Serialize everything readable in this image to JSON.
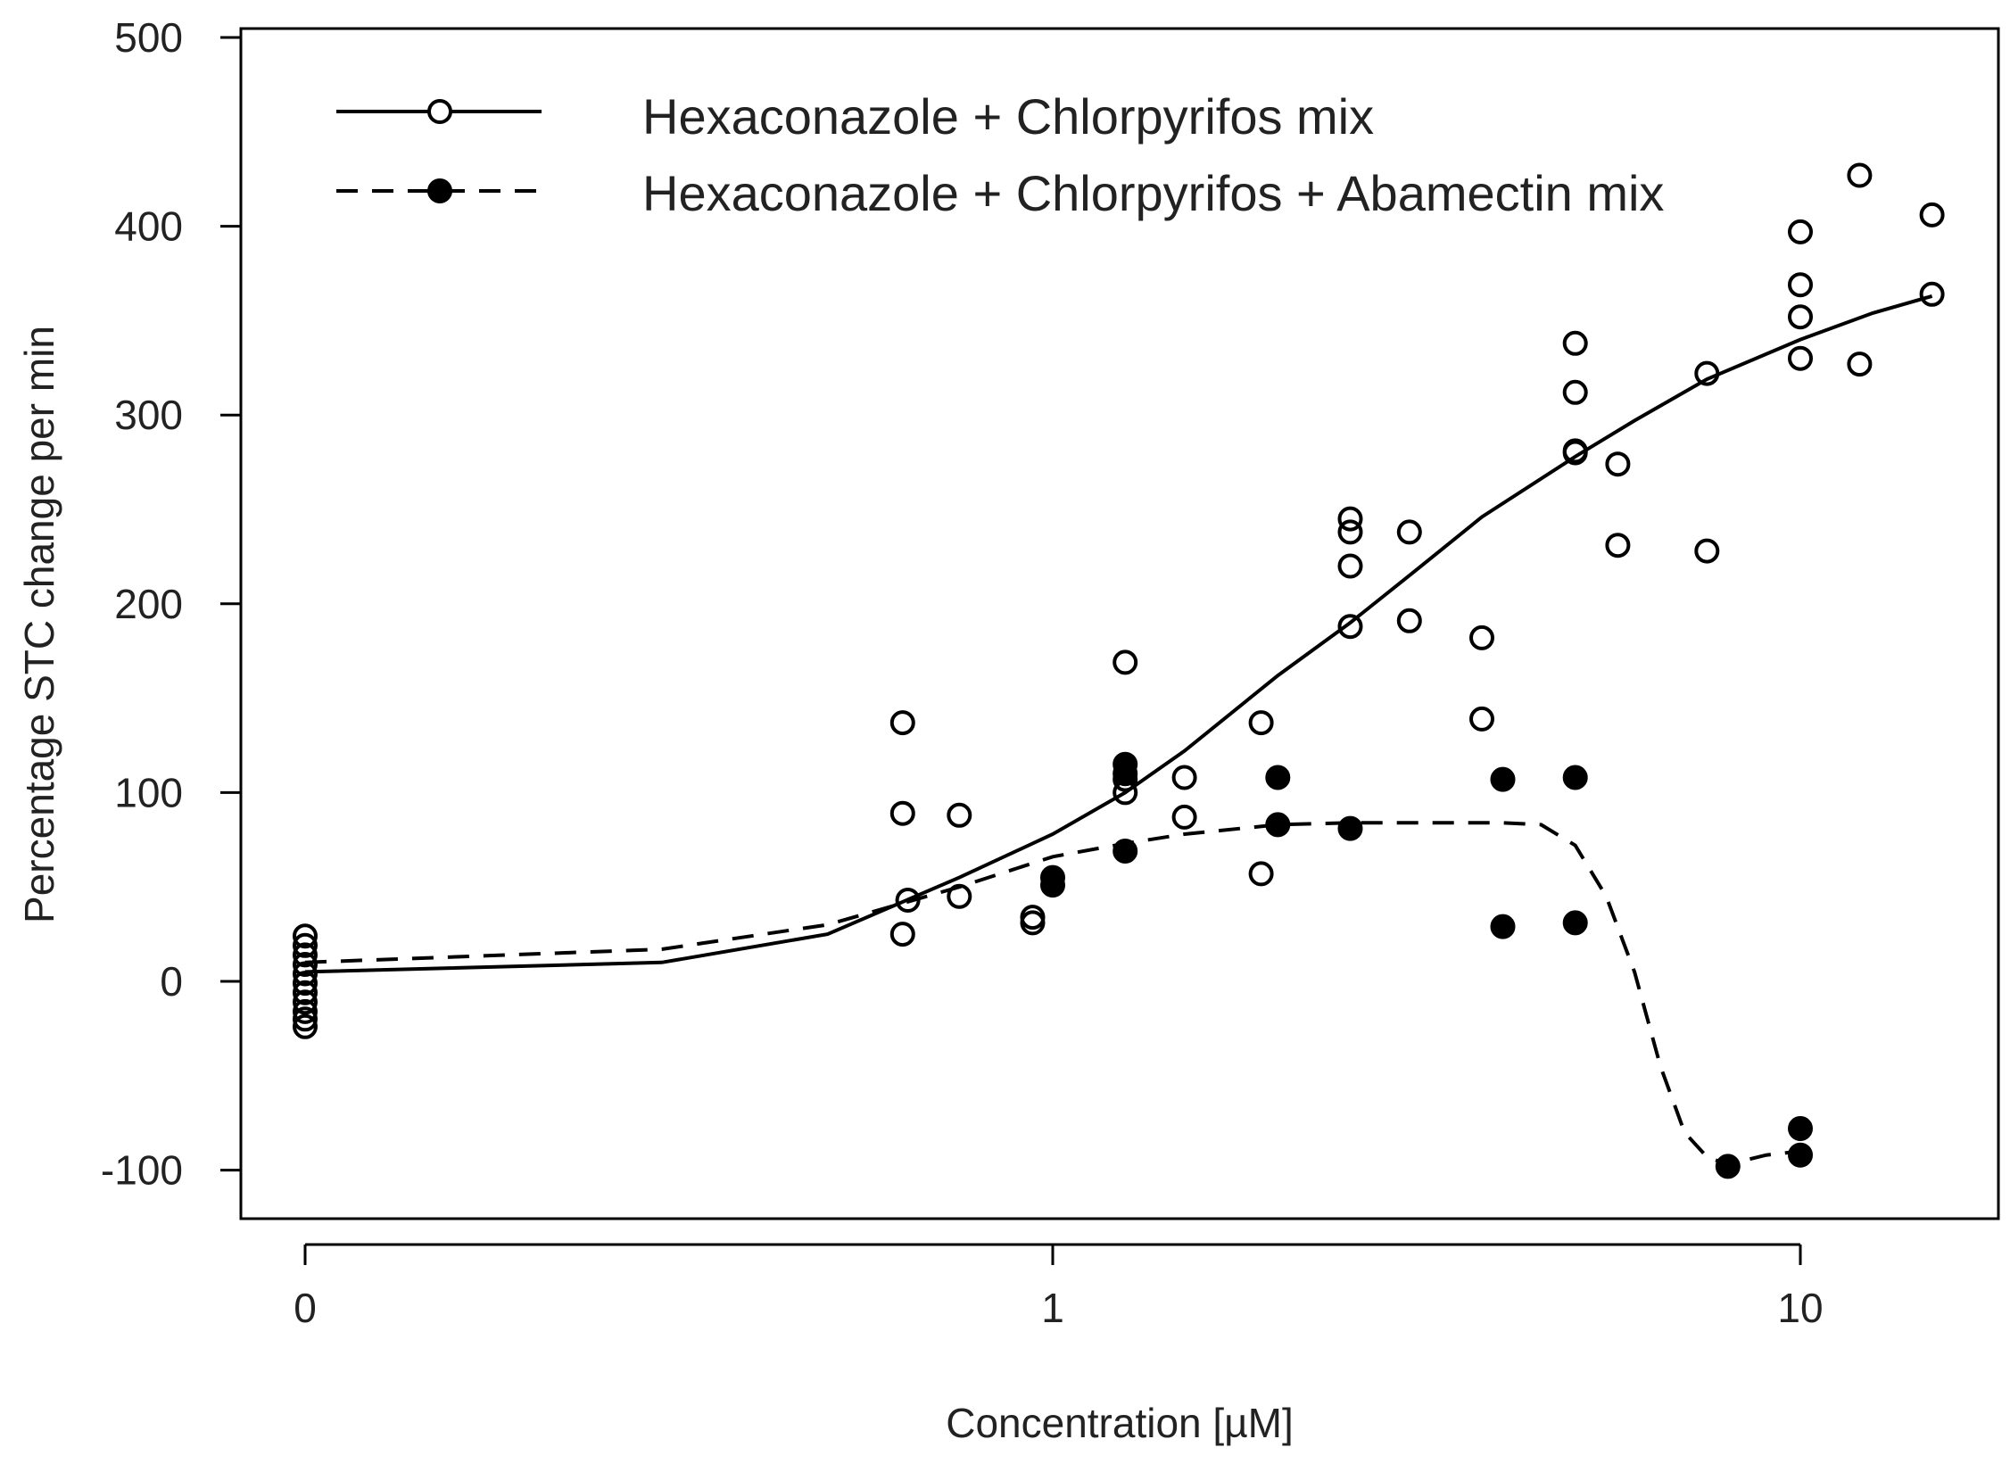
{
  "chart_data": {
    "type": "scatter",
    "title": "",
    "xlabel": "Concentration [µM]",
    "ylabel": "Percentage STC change per min",
    "xscale": "log10 with zero position",
    "ylim": [
      -125,
      500
    ],
    "x_ticks": [
      {
        "value": 0,
        "label": "0"
      },
      {
        "value": 1,
        "label": "1"
      },
      {
        "value": 10,
        "label": "10"
      }
    ],
    "y_ticks": [
      {
        "value": 500,
        "label": "500"
      },
      {
        "value": 400,
        "label": "400"
      },
      {
        "value": 300,
        "label": "300"
      },
      {
        "value": 200,
        "label": "200"
      },
      {
        "value": 100,
        "label": "100"
      },
      {
        "value": 0,
        "label": "0"
      },
      {
        "value": -100,
        "label": "-100"
      }
    ],
    "grid": false,
    "legend_position": "top-left",
    "series": [
      {
        "name": "Hexaconazole + Chlorpyrifos mix",
        "marker": "open-circle",
        "line": "solid",
        "points": [
          [
            0,
            24
          ],
          [
            0,
            19
          ],
          [
            0,
            14
          ],
          [
            0,
            9
          ],
          [
            0,
            4
          ],
          [
            0,
            -1
          ],
          [
            0,
            -6
          ],
          [
            0,
            -11
          ],
          [
            0,
            -16
          ],
          [
            0,
            -20
          ],
          [
            0,
            -24
          ],
          [
            0.63,
            137
          ],
          [
            0.63,
            89
          ],
          [
            0.64,
            43
          ],
          [
            0.63,
            25
          ],
          [
            0.75,
            88
          ],
          [
            0.75,
            45
          ],
          [
            0.94,
            34
          ],
          [
            0.94,
            31
          ],
          [
            1.25,
            169
          ],
          [
            1.25,
            107
          ],
          [
            1.25,
            100
          ],
          [
            1.5,
            108
          ],
          [
            1.5,
            87
          ],
          [
            1.9,
            137
          ],
          [
            1.9,
            57
          ],
          [
            2.5,
            245
          ],
          [
            2.5,
            238
          ],
          [
            2.5,
            220
          ],
          [
            2.5,
            188
          ],
          [
            3.0,
            238
          ],
          [
            3.0,
            191
          ],
          [
            3.75,
            182
          ],
          [
            3.75,
            139
          ],
          [
            5.0,
            338
          ],
          [
            5.0,
            312
          ],
          [
            5.0,
            281
          ],
          [
            5.0,
            280
          ],
          [
            5.7,
            274
          ],
          [
            5.7,
            231
          ],
          [
            7.5,
            322
          ],
          [
            7.5,
            228
          ],
          [
            10,
            397
          ],
          [
            10,
            369
          ],
          [
            10,
            352
          ],
          [
            10,
            330
          ],
          [
            12,
            427
          ],
          [
            12,
            327
          ],
          [
            15,
            406
          ],
          [
            15,
            364
          ]
        ],
        "fit": [
          [
            0,
            5
          ],
          [
            0.3,
            10
          ],
          [
            0.5,
            25
          ],
          [
            0.75,
            55
          ],
          [
            1.0,
            78
          ],
          [
            1.25,
            100
          ],
          [
            1.5,
            122
          ],
          [
            2.0,
            162
          ],
          [
            2.5,
            190
          ],
          [
            3.0,
            215
          ],
          [
            3.75,
            246
          ],
          [
            5.0,
            278
          ],
          [
            6.0,
            297
          ],
          [
            7.5,
            319
          ],
          [
            10,
            340
          ],
          [
            12.5,
            354
          ],
          [
            15,
            363
          ]
        ]
      },
      {
        "name": "Hexaconazole + Chlorpyrifos + Abamectin mix",
        "marker": "filled-circle",
        "line": "dashed",
        "points": [
          [
            1.0,
            55
          ],
          [
            1.0,
            51
          ],
          [
            1.25,
            115
          ],
          [
            1.25,
            110
          ],
          [
            1.25,
            69
          ],
          [
            2.0,
            108
          ],
          [
            2.0,
            83
          ],
          [
            2.5,
            81
          ],
          [
            4.0,
            107
          ],
          [
            4.0,
            29
          ],
          [
            5.0,
            108
          ],
          [
            5.0,
            31
          ],
          [
            8.0,
            -98
          ],
          [
            10,
            -78
          ],
          [
            10,
            -92
          ]
        ],
        "fit": [
          [
            0,
            10
          ],
          [
            0.3,
            17
          ],
          [
            0.5,
            30
          ],
          [
            0.75,
            50
          ],
          [
            1.0,
            66
          ],
          [
            1.25,
            73
          ],
          [
            1.5,
            78
          ],
          [
            2.0,
            83
          ],
          [
            2.5,
            84
          ],
          [
            3.0,
            84
          ],
          [
            4.0,
            84
          ],
          [
            4.5,
            83
          ],
          [
            5.0,
            72
          ],
          [
            5.5,
            45
          ],
          [
            6.0,
            5
          ],
          [
            6.5,
            -45
          ],
          [
            7.0,
            -80
          ],
          [
            7.5,
            -93
          ],
          [
            8.0,
            -97
          ],
          [
            9.0,
            -92
          ],
          [
            10,
            -90
          ]
        ]
      }
    ]
  }
}
